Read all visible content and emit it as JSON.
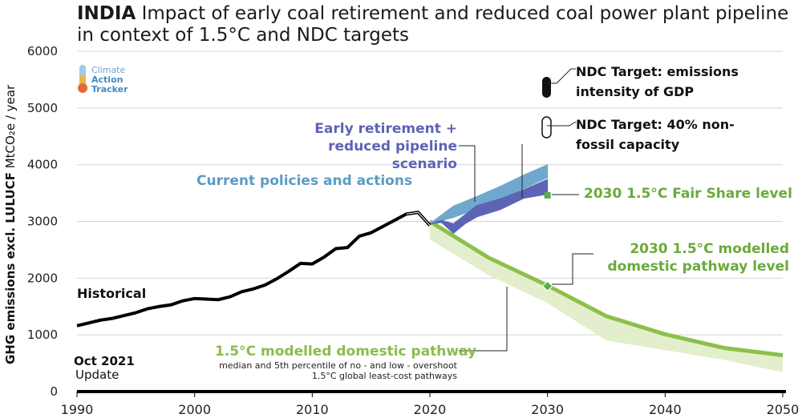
{
  "title": {
    "bold": "INDIA",
    "rest": " Impact of  early coal retirement and reduced coal power plant pipeline in context of 1.5°C and NDC targets"
  },
  "logo": {
    "line1": "Climate",
    "line2": "Action",
    "line3": "Tracker"
  },
  "update": {
    "line1": "Oct 2021",
    "line2": "Update"
  },
  "colors": {
    "historical": "#000000",
    "current_policies": "#6fa8cc",
    "early_retirement": "#5d63b5",
    "pathway": "#8cc04a",
    "pathway_band": "#e3efcc",
    "fair_share": "#5aad4e",
    "annotation_green": "#6aaa3a",
    "annotation_blue": "#5b9bc4",
    "annotation_purple": "#5d63b5"
  },
  "chart_data": {
    "type": "line",
    "ylabel_bold": "GHG emissions excl. LULUCF",
    "ylabel_rest": " MtCO₂e / year",
    "xlim": [
      1990,
      2050
    ],
    "ylim": [
      0,
      6000
    ],
    "x_ticks": [
      1990,
      2000,
      2010,
      2020,
      2030,
      2040,
      2050
    ],
    "y_ticks": [
      0,
      1000,
      2000,
      3000,
      4000,
      5000,
      6000
    ],
    "historical": {
      "name": "Historical",
      "x": [
        1990,
        1991,
        1992,
        1993,
        1994,
        1995,
        1996,
        1997,
        1998,
        1999,
        2000,
        2001,
        2002,
        2003,
        2004,
        2005,
        2006,
        2007,
        2008,
        2009,
        2010,
        2011,
        2012,
        2013,
        2014,
        2015,
        2016,
        2017,
        2018,
        2019,
        2020
      ],
      "y": [
        1160,
        1210,
        1260,
        1290,
        1340,
        1390,
        1460,
        1500,
        1530,
        1600,
        1640,
        1630,
        1620,
        1670,
        1760,
        1810,
        1880,
        1990,
        2120,
        2260,
        2250,
        2370,
        2520,
        2540,
        2740,
        2800,
        2910,
        3020,
        3130,
        3160,
        2930
      ]
    },
    "current_policies": {
      "name": "Current policies and actions",
      "x": [
        2020,
        2022,
        2024,
        2026,
        2028,
        2030
      ],
      "upper": [
        2960,
        3270,
        3440,
        3620,
        3820,
        4000
      ],
      "lower": [
        2960,
        3070,
        3220,
        3400,
        3580,
        3770
      ]
    },
    "early_retirement": {
      "name": "Early retirement + reduced pipeline scenario",
      "x": [
        2020,
        2021,
        2022,
        2023,
        2024,
        2026,
        2028,
        2030
      ],
      "upper": [
        2960,
        3020,
        2960,
        3120,
        3280,
        3400,
        3560,
        3740
      ],
      "lower": [
        2960,
        2980,
        2790,
        2960,
        3080,
        3210,
        3410,
        3480
      ]
    },
    "pathway": {
      "name": "1.5°C modelled domestic pathway",
      "note": "median and 5th percentile of no - and low - overshoot 1.5°C global least-cost pathways",
      "x": [
        2020,
        2025,
        2030,
        2035,
        2040,
        2045,
        2050
      ],
      "median": [
        3000,
        2360,
        1870,
        1330,
        1010,
        770,
        640
      ],
      "lower": [
        2680,
        2050,
        1560,
        900,
        730,
        560,
        340
      ]
    },
    "ndc_intensity": {
      "name": "NDC Target: emissions intensity of GDP"
    },
    "ndc_nonfossil": {
      "name": "NDC Target: 40% non-fossil capacity"
    },
    "fair_share": {
      "name": "2030 1.5°C Fair Share level",
      "x": 2030,
      "y": 3460
    },
    "domestic_level": {
      "name": "2030 1.5°C modelled domestic pathway level",
      "x": 2030,
      "y": 1860
    }
  }
}
